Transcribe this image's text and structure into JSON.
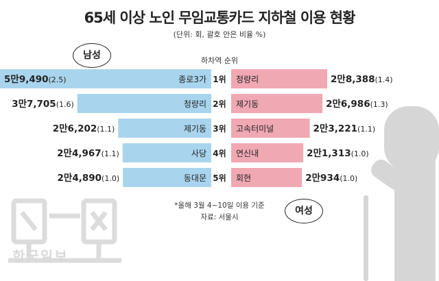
{
  "title": "65세 이상 노인 무임교통카드 지하철 이용 현황",
  "subtitle": "(단위: 회, 괄호 안은 비율 %)",
  "labels": {
    "male": "남성",
    "female": "여성",
    "watermark": "한국일보"
  },
  "notes": {
    "period": "*올해 3월 4~10일 이용 기준",
    "source": "자료: 서울시"
  },
  "colors": {
    "male_bar": "#a9d4ee",
    "female_bar": "#f0a8b3",
    "figure": "#d6d6d6",
    "watermark": "#d9d9d9"
  },
  "chart_data": {
    "type": "bar",
    "title": "65세 이상 노인 무임교통카드 지하철 이용 현황",
    "subtitle": "(단위: 회, 괄호 안은 비율 %)",
    "xlabel": "하차역 순위",
    "categories": [
      "1위",
      "2위",
      "3위",
      "4위",
      "5위"
    ],
    "series": [
      {
        "name": "남성",
        "stations": [
          "종로3가",
          "청량리",
          "제기동",
          "사당",
          "동대문"
        ],
        "values": [
          59490,
          37705,
          26202,
          24967,
          24890
        ],
        "value_labels": [
          "5만9,490",
          "3만7,705",
          "2만6,202",
          "2만4,967",
          "2만4,890"
        ],
        "share_labels": [
          "(2.5)",
          "(1.6)",
          "(1.1)",
          "(1.1)",
          "(1.0)"
        ]
      },
      {
        "name": "여성",
        "stations": [
          "청량리",
          "제기동",
          "고속터미널",
          "연신내",
          "회현"
        ],
        "values": [
          28388,
          26986,
          23221,
          21313,
          20934
        ],
        "value_labels": [
          "2만8,388",
          "2만6,986",
          "2만3,221",
          "2만1,313",
          "2만934"
        ],
        "share_labels": [
          "(1.4)",
          "(1.3)",
          "(1.1)",
          "(1.0)",
          "(1.0)"
        ]
      }
    ],
    "legend": "none",
    "grid": false
  }
}
